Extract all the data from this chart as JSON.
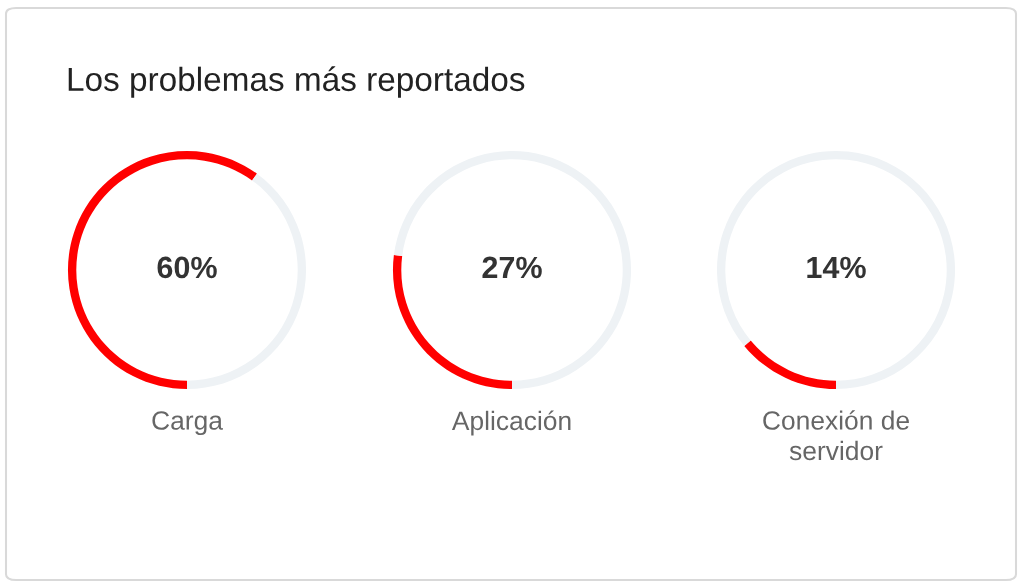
{
  "chart_data": [
    {
      "type": "donut",
      "title": "Los problemas más reportados",
      "categories": [
        "Carga",
        null
      ],
      "values": [
        60,
        40
      ],
      "colors": [
        "#ff0000",
        "#eef2f5"
      ],
      "annotations": [
        "60%"
      ]
    },
    {
      "type": "donut",
      "categories": [
        "Aplicación",
        null
      ],
      "values": [
        27,
        73
      ],
      "colors": [
        "#ff0000",
        "#eef2f5"
      ],
      "annotations": [
        "27%"
      ]
    },
    {
      "type": "donut",
      "categories": [
        "Conexión de servidor",
        null
      ],
      "values": [
        14,
        86
      ],
      "colors": [
        "#ff0000",
        "#eef2f5"
      ],
      "annotations": [
        "14%"
      ]
    }
  ]
}
